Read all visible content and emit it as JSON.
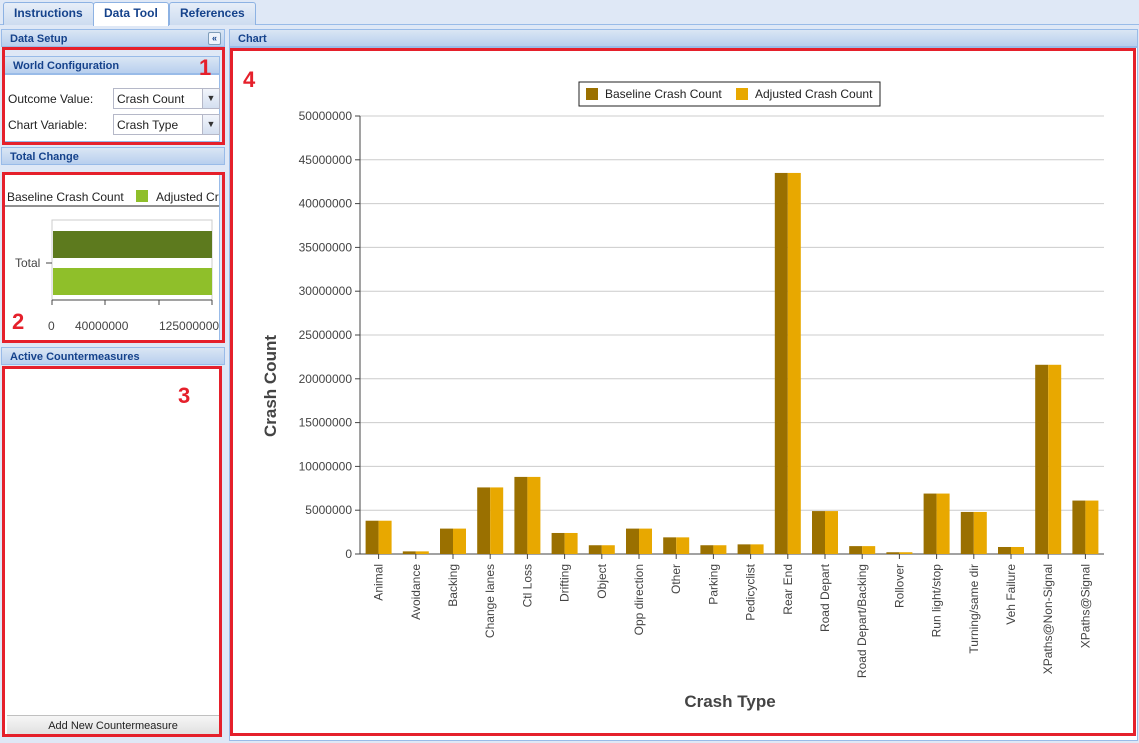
{
  "tabs": [
    {
      "label": "Instructions"
    },
    {
      "label": "Data Tool"
    },
    {
      "label": "References"
    }
  ],
  "data_setup": {
    "title": "Data Setup",
    "collapse_glyph": "«",
    "world_config": {
      "title": "World Configuration",
      "outcome_label": "Outcome Value:",
      "outcome_value": "Crash Count",
      "chart_var_label": "Chart Variable:",
      "chart_var_value": "Crash Type"
    },
    "total_change": {
      "title": "Total Change",
      "legend": [
        "Baseline Crash Count",
        "Adjusted Cr"
      ],
      "category": "Total",
      "ticks": [
        "0",
        "40000000",
        "125000000"
      ],
      "baseline_color": "#5d7a1e",
      "adjusted_color": "#8fbf2a"
    },
    "countermeasures": {
      "title": "Active Countermeasures",
      "add_button": "Add New Countermeasure"
    }
  },
  "annotations": [
    "1",
    "2",
    "3",
    "4"
  ],
  "chart_panel": {
    "title": "Chart"
  },
  "chart_data": {
    "type": "bar",
    "xlabel": "Crash Type",
    "ylabel": "Crash Count",
    "ylim": [
      0,
      50000000
    ],
    "yticks": [
      "0",
      "5000000",
      "10000000",
      "15000000",
      "20000000",
      "25000000",
      "30000000",
      "35000000",
      "40000000",
      "45000000",
      "50000000"
    ],
    "grid": true,
    "legend_position": "top-center",
    "categories": [
      "Animal",
      "Avoidance",
      "Backing",
      "Change lanes",
      "Ctl Loss",
      "Drifting",
      "Object",
      "Opp direction",
      "Other",
      "Parking",
      "Pedicyclist",
      "Rear End",
      "Road Depart",
      "Road Depart/Backing",
      "Rollover",
      "Run light/stop",
      "Turning/same dir",
      "Veh Failure",
      "XPaths@Non-Signal",
      "XPaths@Signal"
    ],
    "series": [
      {
        "name": "Baseline Crash Count",
        "color": "#9a7000",
        "values": [
          3800000,
          300000,
          2900000,
          7600000,
          8800000,
          2400000,
          1000000,
          2900000,
          1900000,
          1000000,
          1100000,
          43500000,
          4900000,
          900000,
          200000,
          6900000,
          4800000,
          800000,
          21600000,
          6100000
        ]
      },
      {
        "name": "Adjusted Crash Count",
        "color": "#e8a800",
        "values": [
          3800000,
          300000,
          2900000,
          7600000,
          8800000,
          2400000,
          1000000,
          2900000,
          1900000,
          1000000,
          1100000,
          43500000,
          4900000,
          900000,
          200000,
          6900000,
          4800000,
          800000,
          21600000,
          6100000
        ]
      }
    ]
  }
}
